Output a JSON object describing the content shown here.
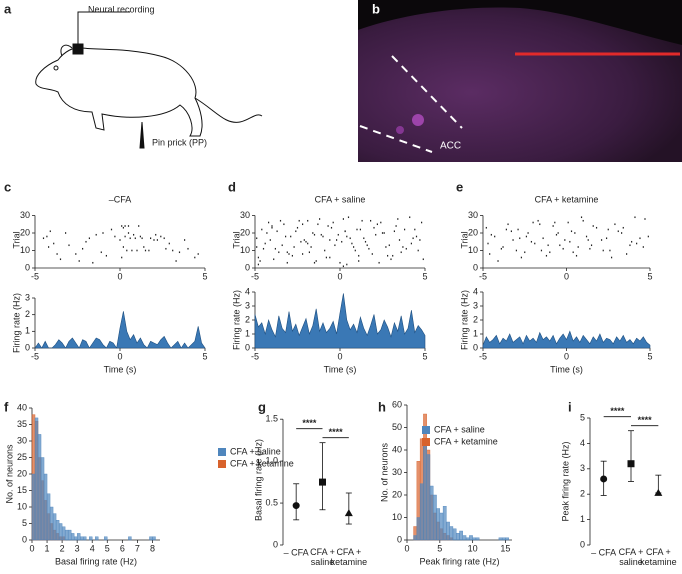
{
  "panel_a": {
    "letter": "a",
    "recording_label": "Neural recording",
    "stimulus_label": "Pin prick (PP)"
  },
  "panel_b": {
    "letter": "b",
    "region_label": "ACC"
  },
  "chart_data": [
    {
      "type": "raster",
      "panel": "c",
      "title": "–CFA",
      "ylabel": "Trial",
      "color": "#222222",
      "x": [
        -4.3,
        -3.9,
        -3.2,
        -2.6,
        -1.8,
        -1.1,
        -0.5,
        0.1,
        0.3,
        0.5,
        1.2,
        1.8,
        2.4,
        3.1,
        3.8,
        4.4,
        -4.1,
        -3.5,
        -2.2,
        -1.4,
        -0.8,
        0.2,
        0.4,
        0.7,
        1.0,
        1.5,
        2.0,
        2.7,
        3.5,
        -4.5,
        -3.0,
        -2.0,
        -0.3,
        0.2,
        0.6,
        0.9,
        1.3,
        1.7,
        2.2,
        2.9,
        4.0,
        -3.7,
        -2.4,
        -1.0,
        0.0,
        0.3,
        0.8,
        1.4,
        2.6,
        3.3,
        -4.2,
        -1.6,
        0.1,
        0.5,
        1.1,
        2.1,
        4.6
      ],
      "values": [
        18,
        14,
        20,
        8,
        17,
        9,
        22,
        24,
        24,
        24,
        18,
        17,
        18,
        10,
        16,
        6,
        21,
        5,
        11,
        19,
        7,
        12,
        10,
        10,
        10,
        10,
        16,
        11,
        9,
        17,
        13,
        15,
        18,
        23,
        17,
        17,
        17,
        10,
        16,
        14,
        11,
        8,
        4,
        20,
        16,
        18,
        19,
        12,
        17,
        4,
        12,
        3,
        6,
        20,
        24,
        19,
        8
      ],
      "xlim": [
        -5,
        5
      ],
      "xticks": [
        -5,
        0,
        5
      ],
      "ylim": [
        0,
        32
      ],
      "yticks": [
        0,
        10,
        20,
        30
      ]
    },
    {
      "type": "area",
      "ylabel": "Firing rate (Hz)",
      "xlabel": "Time (s)",
      "color": "#3a78b5",
      "x": [
        -5,
        -4.8,
        -4.6,
        -4.4,
        -4.2,
        -4,
        -3.8,
        -3.6,
        -3.4,
        -3.2,
        -3,
        -2.8,
        -2.6,
        -2.4,
        -2.2,
        -2,
        -1.8,
        -1.6,
        -1.4,
        -1.2,
        -1,
        -0.8,
        -0.6,
        -0.4,
        -0.2,
        0,
        0.2,
        0.4,
        0.6,
        0.8,
        1,
        1.2,
        1.4,
        1.6,
        1.8,
        2,
        2.2,
        2.4,
        2.6,
        2.8,
        3,
        3.2,
        3.4,
        3.6,
        3.8,
        4,
        4.2,
        4.4,
        4.6,
        4.8,
        5
      ],
      "values": [
        0,
        0.3,
        0,
        0.4,
        0,
        0,
        0.2,
        0.5,
        0.3,
        0,
        0.4,
        0.6,
        0.3,
        0,
        0.5,
        0.4,
        0,
        0.3,
        0.6,
        0.5,
        0.2,
        0,
        0.4,
        0.3,
        0,
        1.2,
        2.2,
        1.0,
        0.5,
        0.8,
        0.3,
        0.6,
        0.2,
        0,
        0.4,
        0.3,
        0.2,
        0.5,
        0.7,
        0.3,
        0,
        0.2,
        0.4,
        0,
        0.3,
        0,
        0.2,
        0.4,
        1.3,
        0.3,
        0
      ],
      "xlim": [
        -5,
        5
      ],
      "xticks": [
        -5,
        0,
        5
      ],
      "ylim": [
        0,
        3
      ],
      "yticks": [
        0,
        1,
        2,
        3
      ]
    },
    {
      "type": "raster",
      "panel": "d",
      "title": "CFA + saline",
      "ylabel": "Trial",
      "color": "#222222",
      "x": [
        -4.8,
        -3.9,
        -3.1,
        -2.2,
        -1.4,
        -0.6,
        0.2,
        1.1,
        2.3,
        3.6,
        -4.5,
        -3.4,
        -2.7,
        -1.9,
        -0.9,
        0.1,
        0.8,
        1.7,
        2.9,
        4.2,
        -4.9,
        -4.1,
        -2.9,
        -2.0,
        -1.1,
        -0.2,
        0.4,
        1.4,
        2.6,
        4.7,
        -4.6,
        -3.7,
        -2.5,
        -1.6,
        -0.7,
        0.3,
        1.0,
        2.0,
        3.2,
        4.4,
        -4.2,
        -3.3,
        -2.4,
        -1.2,
        -0.4,
        0.5,
        1.3,
        2.2,
        3.4,
        4.8,
        -4.7,
        -3.6,
        -2.8,
        -1.7,
        -0.8,
        0.0,
        0.9,
        1.9,
        3.0,
        3.9,
        -4.4,
        -3.2,
        -2.1,
        -1.5,
        -0.3,
        0.6,
        1.5,
        2.5,
        3.7,
        4.5,
        -4.0,
        -3.5,
        -2.6,
        -1.3,
        -0.5,
        0.2,
        1.2,
        2.4,
        3.3,
        4.1,
        -4.8,
        -3.8,
        -2.3,
        -1.8,
        -1.0,
        0.4,
        1.6,
        2.8,
        3.5,
        4.6,
        -4.3,
        -3.0,
        -2.2,
        -1.5,
        -0.1,
        0.7,
        1.8,
        2.7,
        3.8,
        4.9,
        -4.9,
        -4.0,
        -3.1,
        -1.9,
        -0.6,
        0.3,
        1.1,
        2.1,
        3.1,
        4.3
      ],
      "values": [
        2,
        5,
        3,
        8,
        4,
        6,
        1,
        7,
        3,
        9,
        11,
        13,
        12,
        14,
        10,
        15,
        12,
        11,
        13,
        14,
        17,
        16,
        18,
        15,
        19,
        16,
        18,
        17,
        20,
        16,
        22,
        21,
        23,
        20,
        24,
        21,
        22,
        23,
        21,
        22,
        26,
        25,
        27,
        28,
        26,
        29,
        27,
        25,
        28,
        26,
        4,
        9,
        7,
        12,
        6,
        3,
        10,
        8,
        5,
        11,
        14,
        18,
        16,
        19,
        13,
        17,
        15,
        20,
        12,
        18,
        24,
        27,
        21,
        25,
        23,
        28,
        22,
        26,
        24,
        29,
        6,
        11,
        15,
        9,
        18,
        2,
        13,
        7,
        16,
        10,
        20,
        8,
        25,
        3,
        19,
        14,
        27,
        12,
        22,
        5,
        12,
        23,
        9,
        27,
        16,
        21,
        4,
        19,
        7,
        17
      ],
      "xlim": [
        -5,
        5
      ],
      "xticks": [
        -5,
        0,
        5
      ],
      "ylim": [
        0,
        32
      ],
      "yticks": [
        0,
        10,
        20,
        30
      ]
    },
    {
      "type": "area",
      "ylabel": "Firing rate (Hz)",
      "xlabel": "Time (s)",
      "color": "#3a78b5",
      "x": [
        -5,
        -4.8,
        -4.6,
        -4.4,
        -4.2,
        -4,
        -3.8,
        -3.6,
        -3.4,
        -3.2,
        -3,
        -2.8,
        -2.6,
        -2.4,
        -2.2,
        -2,
        -1.8,
        -1.6,
        -1.4,
        -1.2,
        -1,
        -0.8,
        -0.6,
        -0.4,
        -0.2,
        0,
        0.2,
        0.4,
        0.6,
        0.8,
        1,
        1.2,
        1.4,
        1.6,
        1.8,
        2,
        2.2,
        2.4,
        2.6,
        2.8,
        3,
        3.2,
        3.4,
        3.6,
        3.8,
        4,
        4.2,
        4.4,
        4.6,
        4.8,
        5
      ],
      "values": [
        2.4,
        1.5,
        1.8,
        1.0,
        2.0,
        1.3,
        0.8,
        2.3,
        1.4,
        1.1,
        2.6,
        1.2,
        1.7,
        0.9,
        1.5,
        2.1,
        1.0,
        1.6,
        2.8,
        1.2,
        1.8,
        1.1,
        1.4,
        1.9,
        1.0,
        2.5,
        3.9,
        2.0,
        1.3,
        1.7,
        1.1,
        2.2,
        1.4,
        0.9,
        1.6,
        2.4,
        1.0,
        1.3,
        2.0,
        1.5,
        0.8,
        1.8,
        1.2,
        2.3,
        1.0,
        1.4,
        2.7,
        1.1,
        1.6,
        1.3,
        0.9
      ],
      "xlim": [
        -5,
        5
      ],
      "xticks": [
        -5,
        0,
        5
      ],
      "ylim": [
        0,
        4
      ],
      "yticks": [
        0,
        1,
        2,
        3,
        4
      ]
    },
    {
      "type": "raster",
      "panel": "e",
      "title": "CFA + ketamine",
      "ylabel": "Trial",
      "color": "#222222",
      "x": [
        -4.6,
        -3.8,
        -2.7,
        -1.9,
        -1.0,
        -0.2,
        0.6,
        1.5,
        2.6,
        3.9,
        -4.3,
        -3.2,
        -2.3,
        -1.4,
        -0.6,
        0.3,
        1.2,
        2.1,
        3.3,
        4.4,
        -4.8,
        -3.5,
        -2.9,
        -1.7,
        -0.8,
        0.1,
        0.9,
        1.8,
        2.9,
        4.7,
        -4.1,
        -3.0,
        -2.1,
        -1.2,
        -0.4,
        0.5,
        1.4,
        2.4,
        3.6,
        4.2,
        -4.5,
        -3.6,
        -2.5,
        -1.6,
        -0.1,
        0.7,
        1.6,
        2.7,
        3.1,
        4.9,
        -3.9,
        -2.8,
        -2.0,
        -1.1,
        -0.5,
        0.2,
        1.0,
        2.2,
        3.4,
        4.6,
        -4.7,
        -3.3,
        -2.4,
        -1.5,
        -0.7,
        0.4,
        1.3,
        2.5,
        3.8,
        4.1
      ],
      "values": [
        8,
        12,
        6,
        14,
        9,
        11,
        7,
        13,
        10,
        15,
        18,
        16,
        20,
        17,
        19,
        21,
        18,
        16,
        20,
        17,
        23,
        25,
        22,
        27,
        24,
        26,
        29,
        23,
        25,
        28,
        4,
        10,
        15,
        7,
        13,
        20,
        11,
        17,
        8,
        14,
        19,
        22,
        9,
        25,
        16,
        12,
        24,
        6,
        21,
        18,
        11,
        17,
        26,
        13,
        20,
        15,
        27,
        10,
        23,
        12,
        14,
        21,
        18,
        10,
        26,
        9,
        16,
        22,
        13,
        29
      ],
      "xlim": [
        -5,
        5
      ],
      "xticks": [
        -5,
        0,
        5
      ],
      "ylim": [
        0,
        32
      ],
      "yticks": [
        0,
        10,
        20,
        30
      ]
    },
    {
      "type": "area",
      "ylabel": "Firing rate (Hz)",
      "xlabel": "Time (s)",
      "color": "#3a78b5",
      "x": [
        -5,
        -4.8,
        -4.6,
        -4.4,
        -4.2,
        -4,
        -3.8,
        -3.6,
        -3.4,
        -3.2,
        -3,
        -2.8,
        -2.6,
        -2.4,
        -2.2,
        -2,
        -1.8,
        -1.6,
        -1.4,
        -1.2,
        -1,
        -0.8,
        -0.6,
        -0.4,
        -0.2,
        0,
        0.2,
        0.4,
        0.6,
        0.8,
        1,
        1.2,
        1.4,
        1.6,
        1.8,
        2,
        2.2,
        2.4,
        2.6,
        2.8,
        3,
        3.2,
        3.4,
        3.6,
        3.8,
        4,
        4.2,
        4.4,
        4.6,
        4.8,
        5
      ],
      "values": [
        0.2,
        0.8,
        0.4,
        0.6,
        0.9,
        0.3,
        0.7,
        0.5,
        1.0,
        0.4,
        0.6,
        0.8,
        0.3,
        0.9,
        0.5,
        0.7,
        0.4,
        1.1,
        0.6,
        0.8,
        0.5,
        0.9,
        0.3,
        0.7,
        1.0,
        0.6,
        1.2,
        0.5,
        0.8,
        0.4,
        0.9,
        0.6,
        0.3,
        0.8,
        0.5,
        1.0,
        0.4,
        0.7,
        0.6,
        0.3,
        0.8,
        0.5,
        0.9,
        0.4,
        0.6,
        0.3,
        0.7,
        0.5,
        0.8,
        0.4,
        0.2
      ],
      "xlim": [
        -5,
        5
      ],
      "xticks": [
        -5,
        0,
        5
      ],
      "ylim": [
        0,
        4
      ],
      "yticks": [
        0,
        1,
        2,
        3,
        4
      ]
    },
    {
      "type": "histogram",
      "panel": "f",
      "xlabel": "Basal firing rate (Hz)",
      "ylabel": "No. of neurons",
      "legend": "upper right",
      "bins": [
        0,
        0.2,
        0.4,
        0.6,
        0.8,
        1,
        1.2,
        1.4,
        1.6,
        1.8,
        2,
        2.2,
        2.4,
        2.6,
        2.8,
        3,
        3.2,
        3.4,
        3.6,
        3.8,
        4,
        4.2,
        4.4,
        4.6,
        4.8,
        5,
        5.2,
        5.4,
        5.6,
        5.8,
        6,
        6.2,
        6.4,
        6.6,
        6.8,
        7,
        7.2,
        7.4,
        7.6,
        7.8,
        8,
        8.2
      ],
      "series": [
        {
          "name": "CFA + saline",
          "color": "#4f86bd",
          "values": [
            20,
            37,
            32,
            25,
            20,
            14,
            10,
            8,
            6,
            5,
            4,
            3,
            3,
            2,
            1,
            2,
            1,
            1,
            0,
            1,
            0,
            1,
            0,
            0,
            1,
            0,
            0,
            0,
            0,
            0,
            0,
            0,
            1,
            0,
            0,
            0,
            0,
            0,
            0,
            1,
            1
          ]
        },
        {
          "name": "CFA + ketamine",
          "color": "#d8622c",
          "values": [
            38,
            36,
            25,
            18,
            12,
            8,
            5,
            3,
            2,
            1,
            1,
            0,
            0,
            0,
            0,
            0,
            0,
            0,
            0,
            0,
            0,
            0,
            0,
            0,
            0,
            0,
            0,
            0,
            0,
            0,
            0,
            0,
            0,
            0,
            0,
            0,
            0,
            0,
            0,
            0,
            0
          ]
        }
      ],
      "xlim": [
        0,
        8.5
      ],
      "xticks": [
        0,
        1,
        2,
        3,
        4,
        5,
        6,
        7,
        8
      ],
      "ylim": [
        0,
        40
      ],
      "yticks": [
        0,
        5,
        10,
        15,
        20,
        25,
        30,
        35,
        40
      ]
    },
    {
      "type": "errorbar",
      "panel": "g",
      "ylabel": "Basal firing rate (Hz)",
      "color": "#111111",
      "categories": [
        "– CFA",
        "CFA + saline",
        "CFA + ketamine"
      ],
      "markers": [
        "circle",
        "square",
        "triangle"
      ],
      "values": [
        0.47,
        0.75,
        0.38
      ],
      "lower": [
        0.3,
        0.42,
        0.25
      ],
      "upper": [
        0.73,
        1.22,
        0.62
      ],
      "significance": [
        "****",
        "****"
      ],
      "ylim": [
        0,
        1.55
      ],
      "yticks": [
        0,
        0.5,
        {
          "value": 1,
          "label": "1.0"
        },
        1.5
      ]
    },
    {
      "type": "histogram",
      "panel": "h",
      "xlabel": "Peak firing rate (Hz)",
      "ylabel": "No. of neurons",
      "legend": "upper right",
      "bins": [
        0,
        0.5,
        1,
        1.5,
        2,
        2.5,
        3,
        3.5,
        4,
        4.5,
        5,
        5.5,
        6,
        6.5,
        7,
        7.5,
        8,
        8.5,
        9,
        9.5,
        10,
        10.5,
        11,
        11.5,
        12,
        12.5,
        13,
        13.5,
        14,
        14.5,
        15,
        15.5
      ],
      "series": [
        {
          "name": "CFA + saline",
          "color": "#4f86bd",
          "values": [
            0,
            0,
            2,
            10,
            25,
            42,
            38,
            24,
            20,
            14,
            12,
            15,
            8,
            6,
            5,
            3,
            4,
            2,
            1,
            2,
            1,
            1,
            0,
            0,
            0,
            0,
            0,
            0,
            1,
            1,
            1
          ]
        },
        {
          "name": "CFA + ketamine",
          "color": "#d8622c",
          "values": [
            0,
            0,
            6,
            35,
            45,
            56,
            40,
            20,
            12,
            8,
            5,
            3,
            2,
            1,
            0,
            0,
            0,
            0,
            0,
            0,
            0,
            0,
            0,
            0,
            0,
            0,
            0,
            0,
            0,
            0,
            0
          ]
        }
      ],
      "xlim": [
        0,
        16
      ],
      "xticks": [
        0,
        5,
        10,
        15
      ],
      "ylim": [
        0,
        60
      ],
      "yticks": [
        0,
        10,
        20,
        30,
        40,
        50,
        60
      ]
    },
    {
      "type": "errorbar",
      "panel": "i",
      "ylabel": "Peak firing rate (Hz)",
      "color": "#111111",
      "categories": [
        "– CFA",
        "CFA + saline",
        "CFA + ketamine"
      ],
      "markers": [
        "circle",
        "square",
        "triangle"
      ],
      "values": [
        2.6,
        3.2,
        2.05
      ],
      "lower": [
        1.95,
        2.5,
        2.05
      ],
      "upper": [
        3.3,
        4.5,
        2.75
      ],
      "significance": [
        "****",
        "****"
      ],
      "ylim": [
        0,
        5
      ],
      "yticks": [
        0,
        1,
        2,
        3,
        4,
        5
      ]
    }
  ]
}
